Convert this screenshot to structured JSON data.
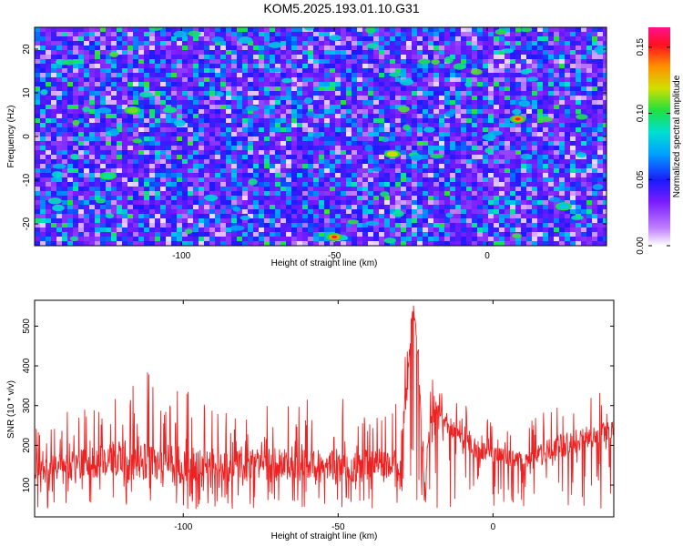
{
  "title": "KOM5.2025.193.01.10.G31",
  "chart_data": [
    {
      "type": "heatmap",
      "xlabel": "Height of straight line (km)",
      "ylabel": "Frequency (Hz)",
      "colorbar_label": "Normalized spectral amplitude",
      "xlim": [
        -148,
        39
      ],
      "ylim": [
        -25,
        25
      ],
      "x_ticks": [
        -100,
        -50,
        0
      ],
      "y_ticks": [
        -20,
        -10,
        0,
        10,
        20
      ],
      "colorbar_range": [
        0.0,
        0.165
      ],
      "colorbar_ticks": [
        "0.00",
        "0.05",
        "0.10",
        "0.15"
      ],
      "colormap": "rainbow (white-violet-blue-cyan-green-yellow-red-magenta)",
      "background_level": "violet/blue noise with white gaps",
      "peaks": [
        {
          "x": 10,
          "y": 4,
          "value": 0.15
        },
        {
          "x": -50,
          "y": -23,
          "value": 0.15
        },
        {
          "x": -116,
          "y": 6,
          "value": 0.11
        },
        {
          "x": -31,
          "y": -4,
          "value": 0.12
        },
        {
          "x": -124,
          "y": -9,
          "value": 0.09
        },
        {
          "x": 25,
          "y": -16,
          "value": 0.08
        }
      ]
    },
    {
      "type": "line",
      "xlabel": "Height of straight line (km)",
      "ylabel": "SNR (10 * v/v)",
      "xlim": [
        -148,
        39
      ],
      "ylim": [
        20,
        565
      ],
      "x_ticks": [
        -100,
        -50,
        0
      ],
      "y_ticks": [
        100,
        200,
        300,
        400,
        500
      ],
      "color": "#ee2222",
      "series": [
        {
          "x": [
            -148,
            -130,
            -110,
            -90,
            -70,
            -50,
            -40,
            -30,
            -28,
            -27,
            -26,
            -25,
            -24,
            -22,
            -20,
            -18,
            -15,
            -10,
            -5,
            0,
            10,
            20,
            30,
            39
          ],
          "y": [
            130,
            140,
            135,
            130,
            135,
            130,
            135,
            145,
            300,
            420,
            540,
            500,
            380,
            80,
            260,
            290,
            240,
            210,
            180,
            170,
            150,
            180,
            210,
            230
          ],
          "envelope_max": [
            240,
            320,
            390,
            300,
            320,
            320,
            310,
            330,
            460,
            545,
            565,
            540,
            450,
            160,
            420,
            360,
            330,
            330,
            280,
            260,
            250,
            320,
            330,
            350
          ]
        }
      ]
    }
  ]
}
